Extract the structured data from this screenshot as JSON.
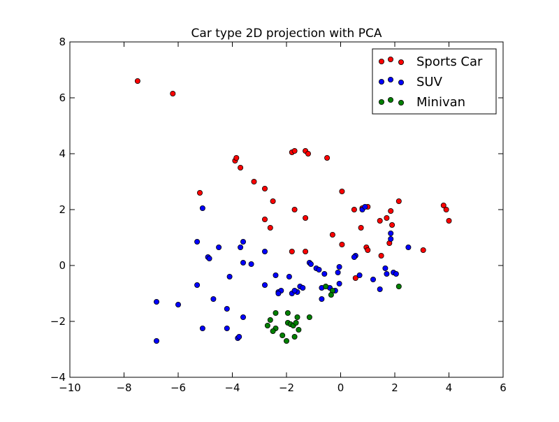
{
  "chart_data": {
    "type": "scatter",
    "title": "Car type 2D projection with PCA",
    "xlabel": "",
    "ylabel": "",
    "xlim": [
      -10,
      6
    ],
    "ylim": [
      -4,
      8
    ],
    "x_ticks": [
      "−10",
      "−8",
      "−6",
      "−4",
      "−2",
      "0",
      "2",
      "4",
      "6"
    ],
    "y_ticks": [
      "−4",
      "−2",
      "0",
      "2",
      "4",
      "6",
      "8"
    ],
    "x_tick_values": [
      -10,
      -8,
      -6,
      -4,
      -2,
      0,
      2,
      4,
      6
    ],
    "y_tick_values": [
      -4,
      -2,
      0,
      2,
      4,
      6,
      8
    ],
    "grid": false,
    "legend_position": "top-right",
    "series": [
      {
        "name": "Sports Car",
        "color": "#ff0000",
        "points": [
          [
            -7.5,
            6.6
          ],
          [
            -6.2,
            6.15
          ],
          [
            -1.8,
            4.05
          ],
          [
            -1.7,
            4.1
          ],
          [
            -1.3,
            4.1
          ],
          [
            -1.2,
            4.0
          ],
          [
            -0.5,
            3.85
          ],
          [
            -3.9,
            3.75
          ],
          [
            -3.85,
            3.85
          ],
          [
            -3.7,
            3.5
          ],
          [
            -3.2,
            3.0
          ],
          [
            -2.8,
            2.75
          ],
          [
            0.05,
            2.65
          ],
          [
            -5.2,
            2.6
          ],
          [
            -2.5,
            2.3
          ],
          [
            2.15,
            2.3
          ],
          [
            3.8,
            2.15
          ],
          [
            3.9,
            2.0
          ],
          [
            4.0,
            1.6
          ],
          [
            0.5,
            2.0
          ],
          [
            0.8,
            2.05
          ],
          [
            1.0,
            2.1
          ],
          [
            -1.7,
            2.0
          ],
          [
            1.85,
            1.95
          ],
          [
            -2.8,
            1.65
          ],
          [
            -1.3,
            1.7
          ],
          [
            1.7,
            1.7
          ],
          [
            1.45,
            1.6
          ],
          [
            1.9,
            1.45
          ],
          [
            -2.6,
            1.35
          ],
          [
            0.75,
            1.35
          ],
          [
            -0.3,
            1.1
          ],
          [
            1.8,
            0.8
          ],
          [
            0.05,
            0.75
          ],
          [
            0.95,
            0.65
          ],
          [
            1.0,
            0.55
          ],
          [
            -1.8,
            0.5
          ],
          [
            -1.3,
            0.5
          ],
          [
            3.05,
            0.55
          ],
          [
            1.5,
            0.35
          ],
          [
            0.55,
            -0.45
          ]
        ]
      },
      {
        "name": "SUV",
        "color": "#0000ff",
        "points": [
          [
            -5.1,
            2.05
          ],
          [
            0.8,
            2.0
          ],
          [
            0.9,
            2.1
          ],
          [
            -5.3,
            0.85
          ],
          [
            -3.6,
            0.85
          ],
          [
            -3.7,
            0.65
          ],
          [
            -4.5,
            0.65
          ],
          [
            -2.8,
            0.5
          ],
          [
            -4.9,
            0.3
          ],
          [
            -4.85,
            0.25
          ],
          [
            -3.6,
            0.1
          ],
          [
            -3.3,
            0.05
          ],
          [
            1.85,
            1.15
          ],
          [
            1.85,
            0.95
          ],
          [
            2.5,
            0.65
          ],
          [
            0.55,
            0.35
          ],
          [
            0.5,
            0.3
          ],
          [
            -1.15,
            0.1
          ],
          [
            -1.1,
            0.05
          ],
          [
            -0.9,
            -0.1
          ],
          [
            -0.8,
            -0.15
          ],
          [
            -0.05,
            -0.05
          ],
          [
            -0.1,
            -0.25
          ],
          [
            -0.6,
            -0.3
          ],
          [
            0.7,
            -0.35
          ],
          [
            1.65,
            -0.1
          ],
          [
            1.95,
            -0.25
          ],
          [
            2.05,
            -0.3
          ],
          [
            1.7,
            -0.3
          ],
          [
            -2.4,
            -0.35
          ],
          [
            -1.9,
            -0.4
          ],
          [
            -4.1,
            -0.4
          ],
          [
            -0.05,
            -0.65
          ],
          [
            -2.8,
            -0.7
          ],
          [
            -5.3,
            -0.7
          ],
          [
            -1.5,
            -0.75
          ],
          [
            -1.4,
            -0.8
          ],
          [
            -0.7,
            -0.8
          ],
          [
            -2.3,
            -0.95
          ],
          [
            -2.2,
            -0.9
          ],
          [
            -2.3,
            -1.0
          ],
          [
            -1.8,
            -1.0
          ],
          [
            -1.6,
            -0.95
          ],
          [
            -1.7,
            -0.9
          ],
          [
            -0.4,
            -0.8
          ],
          [
            -0.2,
            -0.9
          ],
          [
            1.2,
            -0.5
          ],
          [
            1.45,
            -0.85
          ],
          [
            -0.7,
            -1.2
          ],
          [
            -4.7,
            -1.2
          ],
          [
            -6.8,
            -1.3
          ],
          [
            -6.0,
            -1.4
          ],
          [
            -4.2,
            -1.55
          ],
          [
            -3.6,
            -1.85
          ],
          [
            -4.2,
            -2.25
          ],
          [
            -5.1,
            -2.25
          ],
          [
            -3.8,
            -2.6
          ],
          [
            -3.75,
            -2.55
          ],
          [
            -6.8,
            -2.7
          ]
        ]
      },
      {
        "name": "Minivan",
        "color": "#008000",
        "points": [
          [
            2.15,
            -0.75
          ],
          [
            -0.55,
            -0.75
          ],
          [
            -0.3,
            -0.9
          ],
          [
            -0.35,
            -1.05
          ],
          [
            -2.4,
            -1.7
          ],
          [
            -1.95,
            -1.7
          ],
          [
            -1.6,
            -1.85
          ],
          [
            -1.15,
            -1.85
          ],
          [
            -2.6,
            -1.95
          ],
          [
            -1.95,
            -2.05
          ],
          [
            -1.85,
            -2.1
          ],
          [
            -1.75,
            -2.15
          ],
          [
            -1.65,
            -2.05
          ],
          [
            -2.7,
            -2.15
          ],
          [
            -2.4,
            -2.25
          ],
          [
            -1.55,
            -2.3
          ],
          [
            -2.5,
            -2.35
          ],
          [
            -2.15,
            -2.5
          ],
          [
            -1.7,
            -2.55
          ],
          [
            -2.0,
            -2.7
          ]
        ]
      }
    ]
  }
}
